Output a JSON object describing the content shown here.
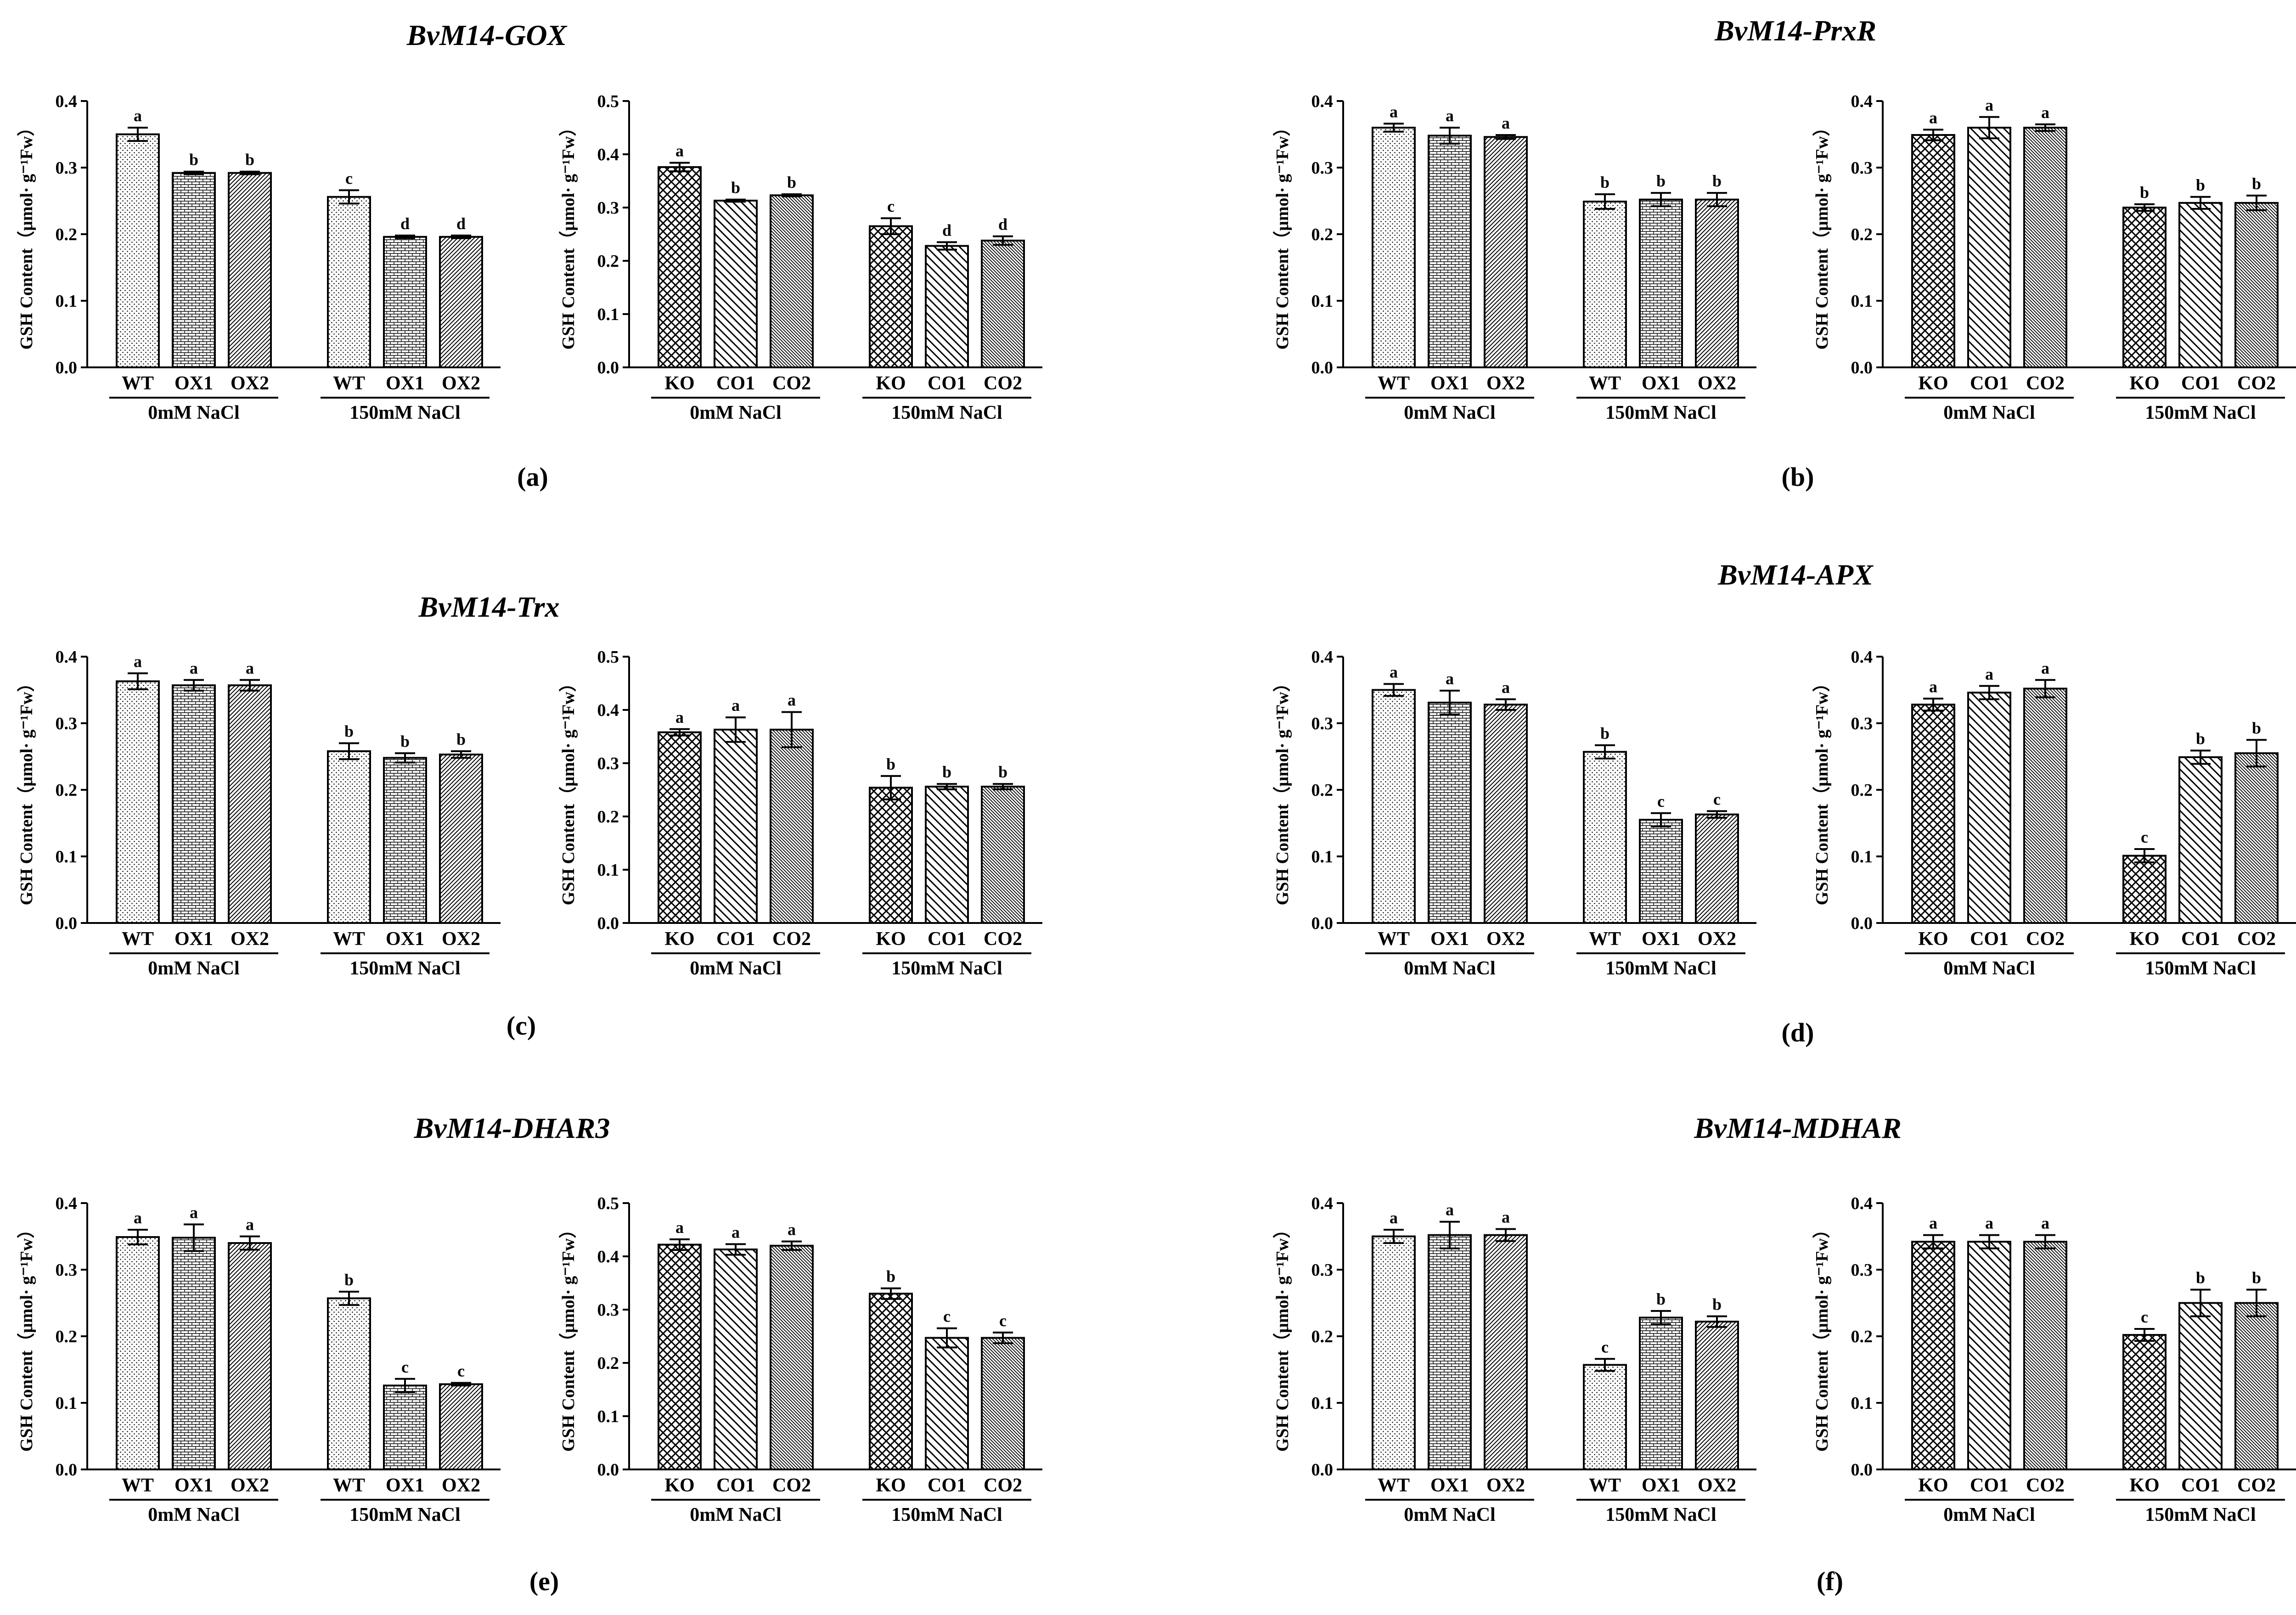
{
  "panels": [
    {
      "letter": "(a)",
      "title": "BvM14-GOX"
    },
    {
      "letter": "(b)",
      "title": "BvM14-PrxR"
    },
    {
      "letter": "(c)",
      "title": "BvM14-Trx"
    },
    {
      "letter": "(d)",
      "title": "BvM14-APX"
    },
    {
      "letter": "(e)",
      "title": "BvM14-DHAR3"
    },
    {
      "letter": "(f)",
      "title": "BvM14-MDHAR"
    }
  ],
  "chart_data": [
    {
      "panel": "(a)",
      "type": "bar",
      "ylabel": "GSH Content（μmol· g⁻¹Fw）",
      "ylim": [
        0,
        0.4
      ],
      "yticks": [
        "0.0",
        "0.1",
        "0.2",
        "0.3",
        "0.4"
      ],
      "categories": [
        "WT",
        "OX1",
        "OX2",
        "WT",
        "OX1",
        "OX2"
      ],
      "groups": [
        "0mM NaCl",
        "150mM NaCl"
      ],
      "values": [
        0.35,
        0.292,
        0.292,
        0.256,
        0.196,
        0.196
      ],
      "errors": [
        0.01,
        0.002,
        0.002,
        0.01,
        0.002,
        0.002
      ],
      "letters": [
        "a",
        "b",
        "b",
        "c",
        "d",
        "d"
      ],
      "patterns": [
        "dots",
        "bricks",
        "diag-right",
        "dots",
        "bricks",
        "diag-right"
      ]
    },
    {
      "panel": "(a)",
      "type": "bar",
      "ylabel": "GSH Content（μmol· g⁻¹Fw）",
      "ylim": [
        0,
        0.5
      ],
      "yticks": [
        "0.0",
        "0.1",
        "0.2",
        "0.3",
        "0.4",
        "0.5"
      ],
      "categories": [
        "KO",
        "CO1",
        "CO2",
        "KO",
        "CO1",
        "CO2"
      ],
      "groups": [
        "0mM NaCl",
        "150mM NaCl"
      ],
      "values": [
        0.376,
        0.313,
        0.323,
        0.265,
        0.228,
        0.238
      ],
      "errors": [
        0.008,
        0.002,
        0.002,
        0.015,
        0.007,
        0.008
      ],
      "letters": [
        "a",
        "b",
        "b",
        "c",
        "d",
        "d"
      ],
      "patterns": [
        "cross",
        "diag-left",
        "dense-diag",
        "cross",
        "diag-left",
        "dense-diag"
      ]
    },
    {
      "panel": "(b)",
      "type": "bar",
      "ylabel": "GSH Content（μmol· g⁻¹Fw）",
      "ylim": [
        0,
        0.4
      ],
      "yticks": [
        "0.0",
        "0.1",
        "0.2",
        "0.3",
        "0.4"
      ],
      "categories": [
        "WT",
        "OX1",
        "OX2",
        "WT",
        "OX1",
        "OX2"
      ],
      "groups": [
        "0mM NaCl",
        "150mM NaCl"
      ],
      "values": [
        0.36,
        0.348,
        0.346,
        0.249,
        0.252,
        0.252
      ],
      "errors": [
        0.006,
        0.012,
        0.003,
        0.011,
        0.01,
        0.01
      ],
      "letters": [
        "a",
        "a",
        "a",
        "b",
        "b",
        "b"
      ],
      "patterns": [
        "dots",
        "bricks",
        "diag-right",
        "dots",
        "bricks",
        "diag-right"
      ]
    },
    {
      "panel": "(b)",
      "type": "bar",
      "ylabel": "GSH Content（μmol· g⁻¹Fw）",
      "ylim": [
        0,
        0.4
      ],
      "yticks": [
        "0.0",
        "0.1",
        "0.2",
        "0.3",
        "0.4"
      ],
      "categories": [
        "KO",
        "CO1",
        "CO2",
        "KO",
        "CO1",
        "CO2"
      ],
      "groups": [
        "0mM NaCl",
        "150mM NaCl"
      ],
      "values": [
        0.349,
        0.36,
        0.36,
        0.24,
        0.247,
        0.247
      ],
      "errors": [
        0.008,
        0.016,
        0.005,
        0.005,
        0.009,
        0.011
      ],
      "letters": [
        "a",
        "a",
        "a",
        "b",
        "b",
        "b"
      ],
      "patterns": [
        "cross",
        "diag-left",
        "dense-diag",
        "cross",
        "diag-left",
        "dense-diag"
      ]
    },
    {
      "panel": "(c)",
      "type": "bar",
      "ylabel": "GSH Content（μmol· g⁻¹Fw）",
      "ylim": [
        0,
        0.4
      ],
      "yticks": [
        "0.0",
        "0.1",
        "0.2",
        "0.3",
        "0.4"
      ],
      "categories": [
        "WT",
        "OX1",
        "OX2",
        "WT",
        "OX1",
        "OX2"
      ],
      "groups": [
        "0mM NaCl",
        "150mM NaCl"
      ],
      "values": [
        0.363,
        0.357,
        0.357,
        0.258,
        0.248,
        0.253
      ],
      "errors": [
        0.012,
        0.008,
        0.008,
        0.012,
        0.007,
        0.005
      ],
      "letters": [
        "a",
        "a",
        "a",
        "b",
        "b",
        "b"
      ],
      "patterns": [
        "dots",
        "bricks",
        "diag-right",
        "dots",
        "bricks",
        "diag-right"
      ]
    },
    {
      "panel": "(c)",
      "type": "bar",
      "ylabel": "GSH Content（μmol· g⁻¹Fw）",
      "ylim": [
        0,
        0.5
      ],
      "yticks": [
        "0.0",
        "0.1",
        "0.2",
        "0.3",
        "0.4",
        "0.5"
      ],
      "categories": [
        "KO",
        "CO1",
        "CO2",
        "KO",
        "CO1",
        "CO2"
      ],
      "groups": [
        "0mM NaCl",
        "150mM NaCl"
      ],
      "values": [
        0.358,
        0.363,
        0.363,
        0.254,
        0.256,
        0.256
      ],
      "errors": [
        0.006,
        0.023,
        0.033,
        0.022,
        0.005,
        0.005
      ],
      "letters": [
        "a",
        "a",
        "a",
        "b",
        "b",
        "b"
      ],
      "patterns": [
        "cross",
        "diag-left",
        "dense-diag",
        "cross",
        "diag-left",
        "dense-diag"
      ]
    },
    {
      "panel": "(d)",
      "type": "bar",
      "ylabel": "GSH Content（μmol· g⁻¹Fw）",
      "ylim": [
        0,
        0.4
      ],
      "yticks": [
        "0.0",
        "0.1",
        "0.2",
        "0.3",
        "0.4"
      ],
      "categories": [
        "WT",
        "OX1",
        "OX2",
        "WT",
        "OX1",
        "OX2"
      ],
      "groups": [
        "0mM NaCl",
        "150mM NaCl"
      ],
      "values": [
        0.35,
        0.331,
        0.328,
        0.257,
        0.155,
        0.163
      ],
      "errors": [
        0.009,
        0.018,
        0.008,
        0.01,
        0.01,
        0.005
      ],
      "letters": [
        "a",
        "a",
        "a",
        "b",
        "c",
        "c"
      ],
      "patterns": [
        "dots",
        "bricks",
        "diag-right",
        "dots",
        "bricks",
        "diag-right"
      ]
    },
    {
      "panel": "(d)",
      "type": "bar",
      "ylabel": "GSH Content（μmol· g⁻¹Fw）",
      "ylim": [
        0,
        0.4
      ],
      "yticks": [
        "0.0",
        "0.1",
        "0.2",
        "0.3",
        "0.4"
      ],
      "categories": [
        "KO",
        "CO1",
        "CO2",
        "KO",
        "CO1",
        "CO2"
      ],
      "groups": [
        "0mM NaCl",
        "150mM NaCl"
      ],
      "values": [
        0.328,
        0.346,
        0.352,
        0.101,
        0.249,
        0.255
      ],
      "errors": [
        0.009,
        0.01,
        0.013,
        0.01,
        0.01,
        0.02
      ],
      "letters": [
        "a",
        "a",
        "a",
        "c",
        "b",
        "b"
      ],
      "patterns": [
        "cross",
        "diag-left",
        "dense-diag",
        "cross",
        "diag-left",
        "dense-diag"
      ]
    },
    {
      "panel": "(e)",
      "type": "bar",
      "ylabel": "GSH Content（μmol· g⁻¹Fw）",
      "ylim": [
        0,
        0.4
      ],
      "yticks": [
        "0.0",
        "0.1",
        "0.2",
        "0.3",
        "0.4"
      ],
      "categories": [
        "WT",
        "OX1",
        "OX2",
        "WT",
        "OX1",
        "OX2"
      ],
      "groups": [
        "0mM NaCl",
        "150mM NaCl"
      ],
      "values": [
        0.349,
        0.348,
        0.34,
        0.257,
        0.126,
        0.128
      ],
      "errors": [
        0.011,
        0.02,
        0.01,
        0.01,
        0.01,
        0.002
      ],
      "letters": [
        "a",
        "a",
        "a",
        "b",
        "c",
        "c"
      ],
      "patterns": [
        "dots",
        "bricks",
        "diag-right",
        "dots",
        "bricks",
        "diag-right"
      ]
    },
    {
      "panel": "(e)",
      "type": "bar",
      "ylabel": "GSH Content（μmol· g⁻¹Fw）",
      "ylim": [
        0,
        0.5
      ],
      "yticks": [
        "0.0",
        "0.1",
        "0.2",
        "0.3",
        "0.4",
        "0.5"
      ],
      "categories": [
        "KO",
        "CO1",
        "CO2",
        "KO",
        "CO1",
        "CO2"
      ],
      "groups": [
        "0mM NaCl",
        "150mM NaCl"
      ],
      "values": [
        0.422,
        0.413,
        0.42,
        0.33,
        0.247,
        0.247
      ],
      "errors": [
        0.01,
        0.01,
        0.008,
        0.01,
        0.018,
        0.01
      ],
      "letters": [
        "a",
        "a",
        "a",
        "b",
        "c",
        "c"
      ],
      "patterns": [
        "cross",
        "diag-left",
        "dense-diag",
        "cross",
        "diag-left",
        "dense-diag"
      ]
    },
    {
      "panel": "(f)",
      "type": "bar",
      "ylabel": "GSH Content（μmol· g⁻¹Fw）",
      "ylim": [
        0,
        0.4
      ],
      "yticks": [
        "0.0",
        "0.1",
        "0.2",
        "0.3",
        "0.4"
      ],
      "categories": [
        "WT",
        "OX1",
        "OX2",
        "WT",
        "OX1",
        "OX2"
      ],
      "groups": [
        "0mM NaCl",
        "150mM NaCl"
      ],
      "values": [
        0.35,
        0.352,
        0.352,
        0.157,
        0.228,
        0.222
      ],
      "errors": [
        0.01,
        0.02,
        0.009,
        0.009,
        0.01,
        0.008
      ],
      "letters": [
        "a",
        "a",
        "a",
        "c",
        "b",
        "b"
      ],
      "patterns": [
        "dots",
        "bricks",
        "diag-right",
        "dots",
        "bricks",
        "diag-right"
      ]
    },
    {
      "panel": "(f)",
      "type": "bar",
      "ylabel": "GSH Content（μmol· g⁻¹Fw）",
      "ylim": [
        0,
        0.4
      ],
      "yticks": [
        "0.0",
        "0.1",
        "0.2",
        "0.3",
        "0.4"
      ],
      "categories": [
        "KO",
        "CO1",
        "CO2",
        "KO",
        "CO1",
        "CO2"
      ],
      "groups": [
        "0mM NaCl",
        "150mM NaCl"
      ],
      "values": [
        0.342,
        0.342,
        0.342,
        0.202,
        0.25,
        0.25
      ],
      "errors": [
        0.01,
        0.01,
        0.01,
        0.009,
        0.02,
        0.02
      ],
      "letters": [
        "a",
        "a",
        "a",
        "c",
        "b",
        "b"
      ],
      "patterns": [
        "cross",
        "diag-left",
        "dense-diag",
        "cross",
        "diag-left",
        "dense-diag"
      ]
    }
  ]
}
